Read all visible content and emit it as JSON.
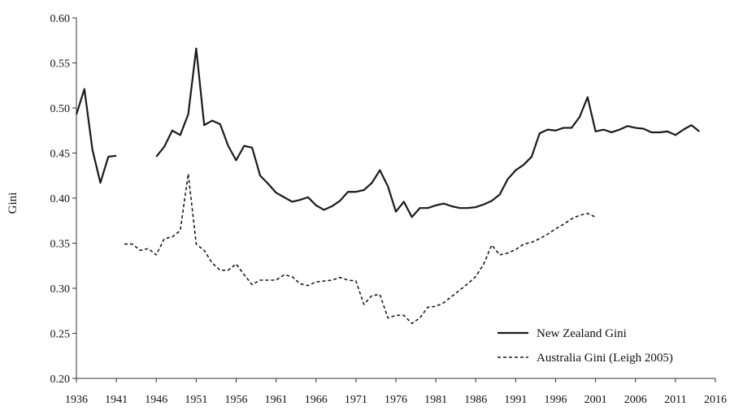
{
  "chart_data": {
    "type": "line",
    "ylabel": "Gini",
    "xlim": [
      1936,
      2016
    ],
    "ylim": [
      0.2,
      0.6
    ],
    "xticks": [
      1936,
      1941,
      1946,
      1951,
      1956,
      1961,
      1966,
      1971,
      1976,
      1981,
      1986,
      1991,
      1996,
      2001,
      2006,
      2011,
      2016
    ],
    "xtick_labels": [
      "1936",
      "1941",
      "1946",
      "1951",
      "1956",
      "1961",
      "1966",
      "1971",
      "1976",
      "1981",
      "1986",
      "1991",
      "1996",
      "2001",
      "2006",
      "2011",
      "2016"
    ],
    "yticks": [
      0.2,
      0.25,
      0.3,
      0.35,
      0.4,
      0.45,
      0.5,
      0.55,
      0.6
    ],
    "ytick_labels": [
      "0.20",
      "0.25",
      "0.30",
      "0.35",
      "0.40",
      "0.45",
      "0.50",
      "0.55",
      "0.60"
    ],
    "legend_position": "bottom-right",
    "series": [
      {
        "name": "New Zealand Gini",
        "style": "solid",
        "color": "#1a1a1a",
        "segments": [
          [
            [
              1936,
              0.493
            ],
            [
              1937,
              0.521
            ],
            [
              1938,
              0.454
            ],
            [
              1939,
              0.417
            ],
            [
              1940,
              0.446
            ],
            [
              1941,
              0.447
            ]
          ],
          [
            [
              1946,
              0.446
            ],
            [
              1947,
              0.457
            ],
            [
              1948,
              0.475
            ],
            [
              1949,
              0.47
            ],
            [
              1950,
              0.493
            ],
            [
              1951,
              0.566
            ],
            [
              1952,
              0.481
            ],
            [
              1953,
              0.486
            ],
            [
              1954,
              0.482
            ],
            [
              1955,
              0.458
            ],
            [
              1956,
              0.442
            ],
            [
              1957,
              0.458
            ],
            [
              1958,
              0.456
            ],
            [
              1959,
              0.425
            ],
            [
              1960,
              0.416
            ],
            [
              1961,
              0.406
            ],
            [
              1962,
              0.401
            ],
            [
              1963,
              0.396
            ],
            [
              1964,
              0.398
            ],
            [
              1965,
              0.401
            ],
            [
              1966,
              0.392
            ],
            [
              1967,
              0.387
            ],
            [
              1968,
              0.391
            ],
            [
              1969,
              0.397
            ],
            [
              1970,
              0.407
            ],
            [
              1971,
              0.407
            ],
            [
              1972,
              0.409
            ],
            [
              1973,
              0.417
            ],
            [
              1974,
              0.431
            ],
            [
              1975,
              0.413
            ],
            [
              1976,
              0.385
            ],
            [
              1977,
              0.396
            ],
            [
              1978,
              0.379
            ],
            [
              1979,
              0.389
            ],
            [
              1980,
              0.389
            ],
            [
              1981,
              0.392
            ],
            [
              1982,
              0.394
            ],
            [
              1983,
              0.391
            ],
            [
              1984,
              0.389
            ],
            [
              1985,
              0.389
            ],
            [
              1986,
              0.39
            ],
            [
              1987,
              0.393
            ],
            [
              1988,
              0.397
            ],
            [
              1989,
              0.404
            ],
            [
              1990,
              0.421
            ],
            [
              1991,
              0.431
            ],
            [
              1992,
              0.437
            ],
            [
              1993,
              0.446
            ],
            [
              1994,
              0.472
            ],
            [
              1995,
              0.476
            ],
            [
              1996,
              0.475
            ],
            [
              1997,
              0.478
            ],
            [
              1998,
              0.478
            ],
            [
              1999,
              0.49
            ],
            [
              2000,
              0.512
            ],
            [
              2001,
              0.474
            ],
            [
              2002,
              0.476
            ],
            [
              2003,
              0.473
            ],
            [
              2004,
              0.476
            ],
            [
              2005,
              0.48
            ],
            [
              2006,
              0.478
            ],
            [
              2007,
              0.477
            ],
            [
              2008,
              0.473
            ],
            [
              2009,
              0.473
            ],
            [
              2010,
              0.474
            ],
            [
              2011,
              0.47
            ],
            [
              2012,
              0.476
            ],
            [
              2013,
              0.481
            ],
            [
              2014,
              0.474
            ]
          ]
        ]
      },
      {
        "name": "Australia Gini (Leigh 2005)",
        "style": "dashed",
        "color": "#1a1a1a",
        "segments": [
          [
            [
              1942,
              0.349
            ],
            [
              1943,
              0.349
            ],
            [
              1944,
              0.342
            ],
            [
              1945,
              0.344
            ],
            [
              1946,
              0.337
            ],
            [
              1947,
              0.355
            ],
            [
              1948,
              0.357
            ],
            [
              1949,
              0.364
            ],
            [
              1950,
              0.427
            ],
            [
              1951,
              0.349
            ],
            [
              1952,
              0.342
            ],
            [
              1953,
              0.328
            ],
            [
              1954,
              0.32
            ],
            [
              1955,
              0.32
            ],
            [
              1956,
              0.327
            ],
            [
              1957,
              0.315
            ],
            [
              1958,
              0.304
            ],
            [
              1959,
              0.309
            ],
            [
              1960,
              0.309
            ],
            [
              1961,
              0.309
            ],
            [
              1962,
              0.315
            ],
            [
              1963,
              0.313
            ],
            [
              1964,
              0.305
            ],
            [
              1965,
              0.303
            ],
            [
              1966,
              0.307
            ],
            [
              1967,
              0.308
            ],
            [
              1968,
              0.309
            ],
            [
              1969,
              0.312
            ],
            [
              1970,
              0.309
            ],
            [
              1971,
              0.308
            ],
            [
              1972,
              0.282
            ],
            [
              1973,
              0.292
            ],
            [
              1974,
              0.293
            ],
            [
              1975,
              0.267
            ],
            [
              1976,
              0.27
            ],
            [
              1977,
              0.27
            ],
            [
              1978,
              0.261
            ],
            [
              1979,
              0.267
            ],
            [
              1980,
              0.279
            ],
            [
              1981,
              0.28
            ],
            [
              1982,
              0.284
            ],
            [
              1983,
              0.291
            ],
            [
              1984,
              0.298
            ],
            [
              1985,
              0.305
            ],
            [
              1986,
              0.313
            ],
            [
              1987,
              0.327
            ],
            [
              1988,
              0.348
            ],
            [
              1989,
              0.337
            ],
            [
              1990,
              0.339
            ],
            [
              1991,
              0.343
            ],
            [
              1992,
              0.349
            ],
            [
              1993,
              0.351
            ],
            [
              1994,
              0.355
            ],
            [
              1995,
              0.36
            ],
            [
              1996,
              0.366
            ],
            [
              1997,
              0.371
            ],
            [
              1998,
              0.377
            ],
            [
              1999,
              0.381
            ],
            [
              2000,
              0.383
            ],
            [
              2001,
              0.379
            ]
          ]
        ]
      }
    ]
  }
}
